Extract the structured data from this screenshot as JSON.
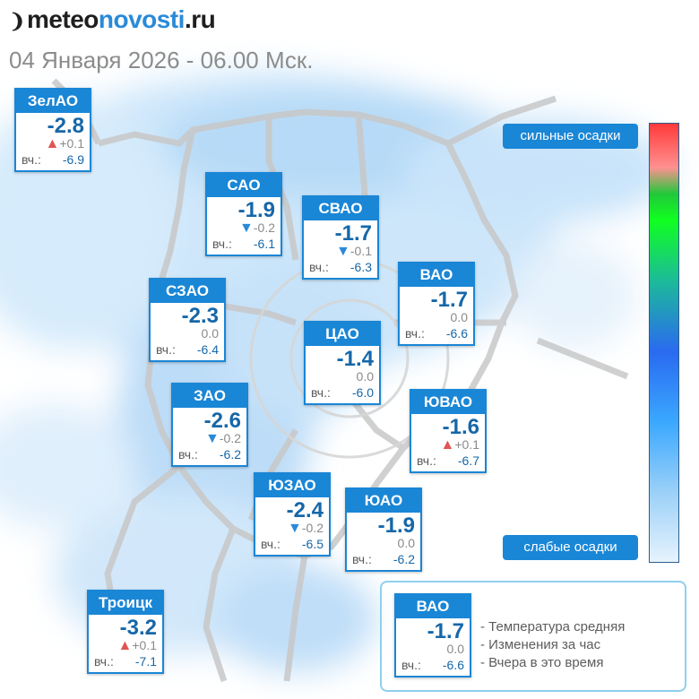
{
  "header": {
    "logo_part1": "meteo",
    "logo_part2": "novosti",
    "logo_part3": ".ru",
    "subtitle": "04 Января 2026 - 06.00 Мск."
  },
  "scale": {
    "strong_label": "сильные осадки",
    "weak_label": "слабые осадки"
  },
  "yday_label": "вч.:",
  "districts": [
    {
      "name": "ЗелАО",
      "temp": "-2.8",
      "dir": "up",
      "change": "+0.1",
      "yday": "-6.9"
    },
    {
      "name": "САО",
      "temp": "-1.9",
      "dir": "down",
      "change": "-0.2",
      "yday": "-6.1"
    },
    {
      "name": "СВАО",
      "temp": "-1.7",
      "dir": "down",
      "change": "-0.1",
      "yday": "-6.3"
    },
    {
      "name": "ВАО",
      "temp": "-1.7",
      "dir": "none",
      "change": "0.0",
      "yday": "-6.6"
    },
    {
      "name": "СЗАО",
      "temp": "-2.3",
      "dir": "none",
      "change": "0.0",
      "yday": "-6.4"
    },
    {
      "name": "ЦАО",
      "temp": "-1.4",
      "dir": "none",
      "change": "0.0",
      "yday": "-6.0"
    },
    {
      "name": "ЗАО",
      "temp": "-2.6",
      "dir": "down",
      "change": "-0.2",
      "yday": "-6.2"
    },
    {
      "name": "ЮВАО",
      "temp": "-1.6",
      "dir": "up",
      "change": "+0.1",
      "yday": "-6.7"
    },
    {
      "name": "ЮЗАО",
      "temp": "-2.4",
      "dir": "down",
      "change": "-0.2",
      "yday": "-6.5"
    },
    {
      "name": "ЮАО",
      "temp": "-1.9",
      "dir": "none",
      "change": "0.0",
      "yday": "-6.2"
    },
    {
      "name": "Троицк",
      "temp": "-3.2",
      "dir": "up",
      "change": "+0.1",
      "yday": "-7.1"
    }
  ],
  "legend": {
    "name": "ВАО",
    "temp": "-1.7",
    "dir": "none",
    "change": "0.0",
    "yday": "-6.6",
    "line1": "- Температура средняя",
    "line2": "- Изменения за час",
    "line3": "- Вчера в это время"
  }
}
